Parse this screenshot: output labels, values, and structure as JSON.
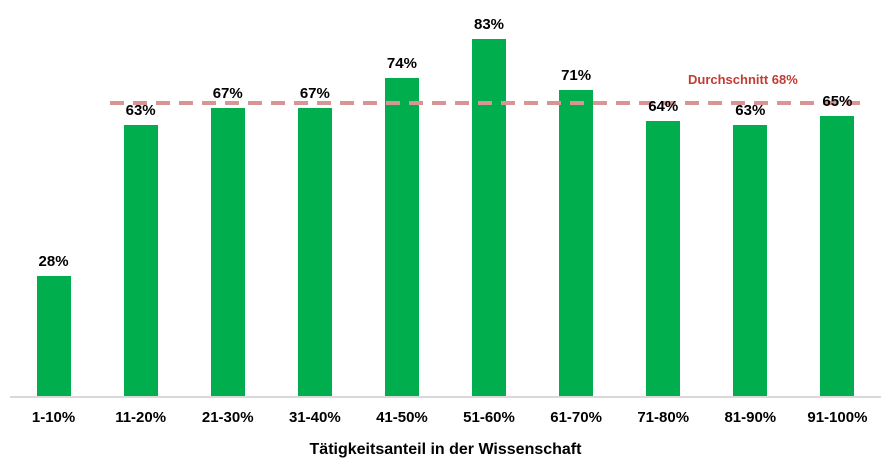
{
  "chart_data": {
    "type": "bar",
    "title": "",
    "xlabel": "Tätigkeitsanteil in der Wissenschaft",
    "ylabel": "",
    "categories": [
      "1-10%",
      "11-20%",
      "21-30%",
      "31-40%",
      "41-50%",
      "51-60%",
      "61-70%",
      "71-80%",
      "81-90%",
      "91-100%"
    ],
    "values": [
      28,
      63,
      67,
      67,
      74,
      83,
      71,
      64,
      63,
      65
    ],
    "value_labels": [
      "28%",
      "63%",
      "67%",
      "67%",
      "74%",
      "83%",
      "71%",
      "64%",
      "63%",
      "65%"
    ],
    "ylim": [
      0,
      92
    ],
    "grid": false,
    "legend": false,
    "average": {
      "value": 68,
      "label": "Durchschnitt 68%"
    },
    "colors": {
      "bar": "#00AE4D",
      "average_line": "#D99594",
      "average_text": "#C23C33",
      "axis_line": "#D9D9D9",
      "label_text": "#000000"
    }
  }
}
